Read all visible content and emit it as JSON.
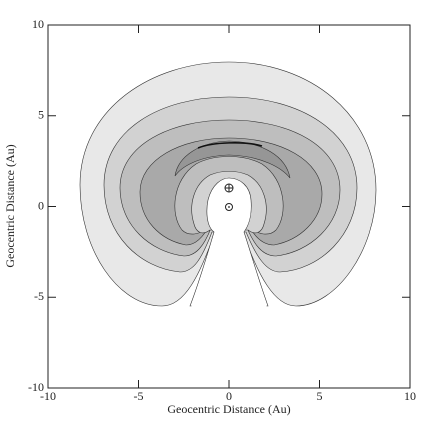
{
  "chart_data": {
    "type": "contour",
    "xlabel": "Geocentric Distance (Au)",
    "ylabel": "Geocentric Distance (Au)",
    "xlim": [
      -10,
      10
    ],
    "ylim": [
      -10,
      10
    ],
    "xticks": [
      -10,
      -5,
      0,
      5,
      10
    ],
    "yticks": [
      -10,
      -5,
      0,
      5,
      10
    ]
  }
}
